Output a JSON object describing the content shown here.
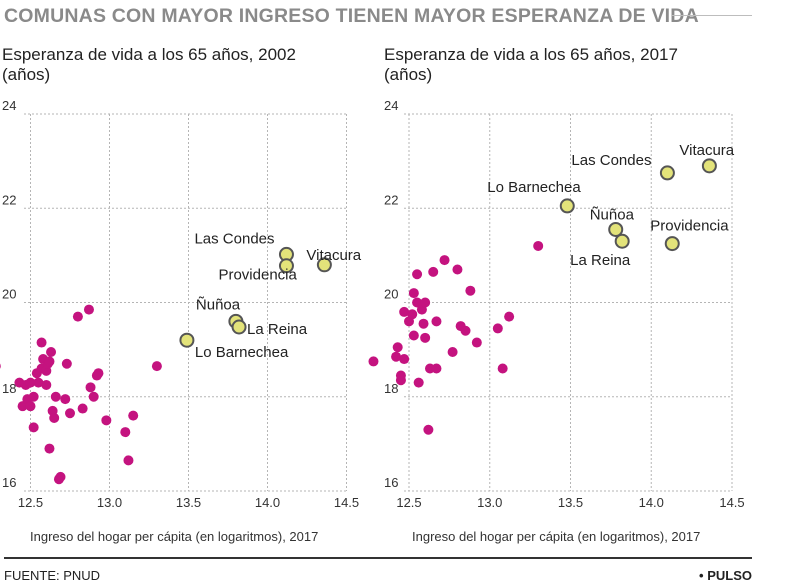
{
  "headline": "COMUNAS CON MAYOR INGRESO TIENEN MAYOR ESPERANZA DE VIDA",
  "source": "FUENTE: PNUD",
  "brand": "• PULSO",
  "colors": {
    "general": "#c4137f",
    "highlight": "#e3e37a",
    "highlight_stroke": "#555555",
    "grid": "#b5b5b5",
    "headline": "#8a8a8a"
  },
  "chart_data": [
    {
      "type": "scatter",
      "title": "Esperanza de vida a los 65 años, 2002",
      "ylabel": "(años)",
      "xlabel": "Ingreso del hogar per cápita (en logaritmos), 2017",
      "xlim": [
        12.2,
        14.55
      ],
      "ylim": [
        16,
        24
      ],
      "xticks": [
        "12.5",
        "13.0",
        "13.5",
        "14.0",
        "14.5"
      ],
      "yticks": [
        "16",
        "18",
        "20",
        "22",
        "24"
      ],
      "grid": true,
      "points": [
        [
          12.28,
          18.65
        ],
        [
          12.43,
          18.3
        ],
        [
          12.45,
          17.8
        ],
        [
          12.47,
          18.25
        ],
        [
          12.48,
          17.95
        ],
        [
          12.5,
          18.3
        ],
        [
          12.5,
          17.8
        ],
        [
          12.52,
          17.35
        ],
        [
          12.52,
          18.0
        ],
        [
          12.54,
          18.5
        ],
        [
          12.55,
          18.3
        ],
        [
          12.57,
          18.6
        ],
        [
          12.57,
          19.15
        ],
        [
          12.58,
          18.8
        ],
        [
          12.6,
          18.55
        ],
        [
          12.6,
          18.25
        ],
        [
          12.61,
          18.7
        ],
        [
          12.62,
          18.75
        ],
        [
          12.62,
          16.9
        ],
        [
          12.63,
          18.95
        ],
        [
          12.64,
          17.7
        ],
        [
          12.65,
          17.55
        ],
        [
          12.66,
          18.0
        ],
        [
          12.68,
          16.25
        ],
        [
          12.69,
          16.3
        ],
        [
          12.72,
          17.95
        ],
        [
          12.73,
          18.7
        ],
        [
          12.75,
          17.65
        ],
        [
          12.8,
          19.7
        ],
        [
          12.83,
          17.75
        ],
        [
          12.87,
          19.85
        ],
        [
          12.88,
          18.2
        ],
        [
          12.9,
          18.0
        ],
        [
          12.92,
          18.45
        ],
        [
          12.93,
          18.5
        ],
        [
          12.98,
          17.5
        ],
        [
          13.1,
          17.25
        ],
        [
          13.12,
          16.65
        ],
        [
          13.15,
          17.6
        ],
        [
          13.3,
          18.65
        ]
      ],
      "highlights": [
        {
          "label": "Vitacura",
          "x": 14.36,
          "y": 20.8
        },
        {
          "label": "Las Condes",
          "x": 14.12,
          "y": 21.02
        },
        {
          "label": "Providencia",
          "x": 14.12,
          "y": 20.78
        },
        {
          "label": "Ñuñoa",
          "x": 13.8,
          "y": 19.6
        },
        {
          "label": "La Reina",
          "x": 13.82,
          "y": 19.48
        },
        {
          "label": "Lo Barnechea",
          "x": 13.49,
          "y": 19.2
        }
      ]
    },
    {
      "type": "scatter",
      "title": "Esperanza de vida a los 65 años, 2017",
      "ylabel": "(años)",
      "xlabel": "Ingreso del hogar per cápita (en logaritmos), 2017",
      "xlim": [
        12.2,
        14.55
      ],
      "ylim": [
        16,
        24
      ],
      "xticks": [
        "12.5",
        "13.0",
        "13.5",
        "14.0",
        "14.5"
      ],
      "yticks": [
        "16",
        "18",
        "20",
        "22",
        "24"
      ],
      "grid": true,
      "points": [
        [
          12.28,
          18.75
        ],
        [
          12.42,
          18.85
        ],
        [
          12.43,
          19.05
        ],
        [
          12.45,
          18.35
        ],
        [
          12.45,
          18.45
        ],
        [
          12.47,
          18.8
        ],
        [
          12.47,
          19.8
        ],
        [
          12.5,
          19.6
        ],
        [
          12.52,
          19.75
        ],
        [
          12.53,
          20.2
        ],
        [
          12.53,
          19.3
        ],
        [
          12.55,
          20.6
        ],
        [
          12.55,
          20.0
        ],
        [
          12.56,
          18.3
        ],
        [
          12.58,
          19.85
        ],
        [
          12.59,
          19.55
        ],
        [
          12.6,
          20.0
        ],
        [
          12.6,
          19.25
        ],
        [
          12.62,
          17.3
        ],
        [
          12.63,
          18.6
        ],
        [
          12.65,
          20.65
        ],
        [
          12.67,
          18.6
        ],
        [
          12.67,
          19.6
        ],
        [
          12.72,
          20.9
        ],
        [
          12.77,
          18.95
        ],
        [
          12.8,
          20.7
        ],
        [
          12.82,
          19.5
        ],
        [
          12.85,
          19.4
        ],
        [
          12.88,
          20.25
        ],
        [
          12.92,
          19.15
        ],
        [
          13.05,
          19.45
        ],
        [
          13.08,
          18.6
        ],
        [
          13.12,
          19.7
        ],
        [
          13.3,
          21.2
        ]
      ],
      "highlights": [
        {
          "label": "Vitacura",
          "x": 14.36,
          "y": 22.9
        },
        {
          "label": "Las Condes",
          "x": 14.1,
          "y": 22.75
        },
        {
          "label": "Lo Barnechea",
          "x": 13.48,
          "y": 22.05
        },
        {
          "label": "Ñuñoa",
          "x": 13.78,
          "y": 21.55
        },
        {
          "label": "La Reina",
          "x": 13.82,
          "y": 21.3
        },
        {
          "label": "Providencia",
          "x": 14.13,
          "y": 21.25
        }
      ]
    }
  ]
}
